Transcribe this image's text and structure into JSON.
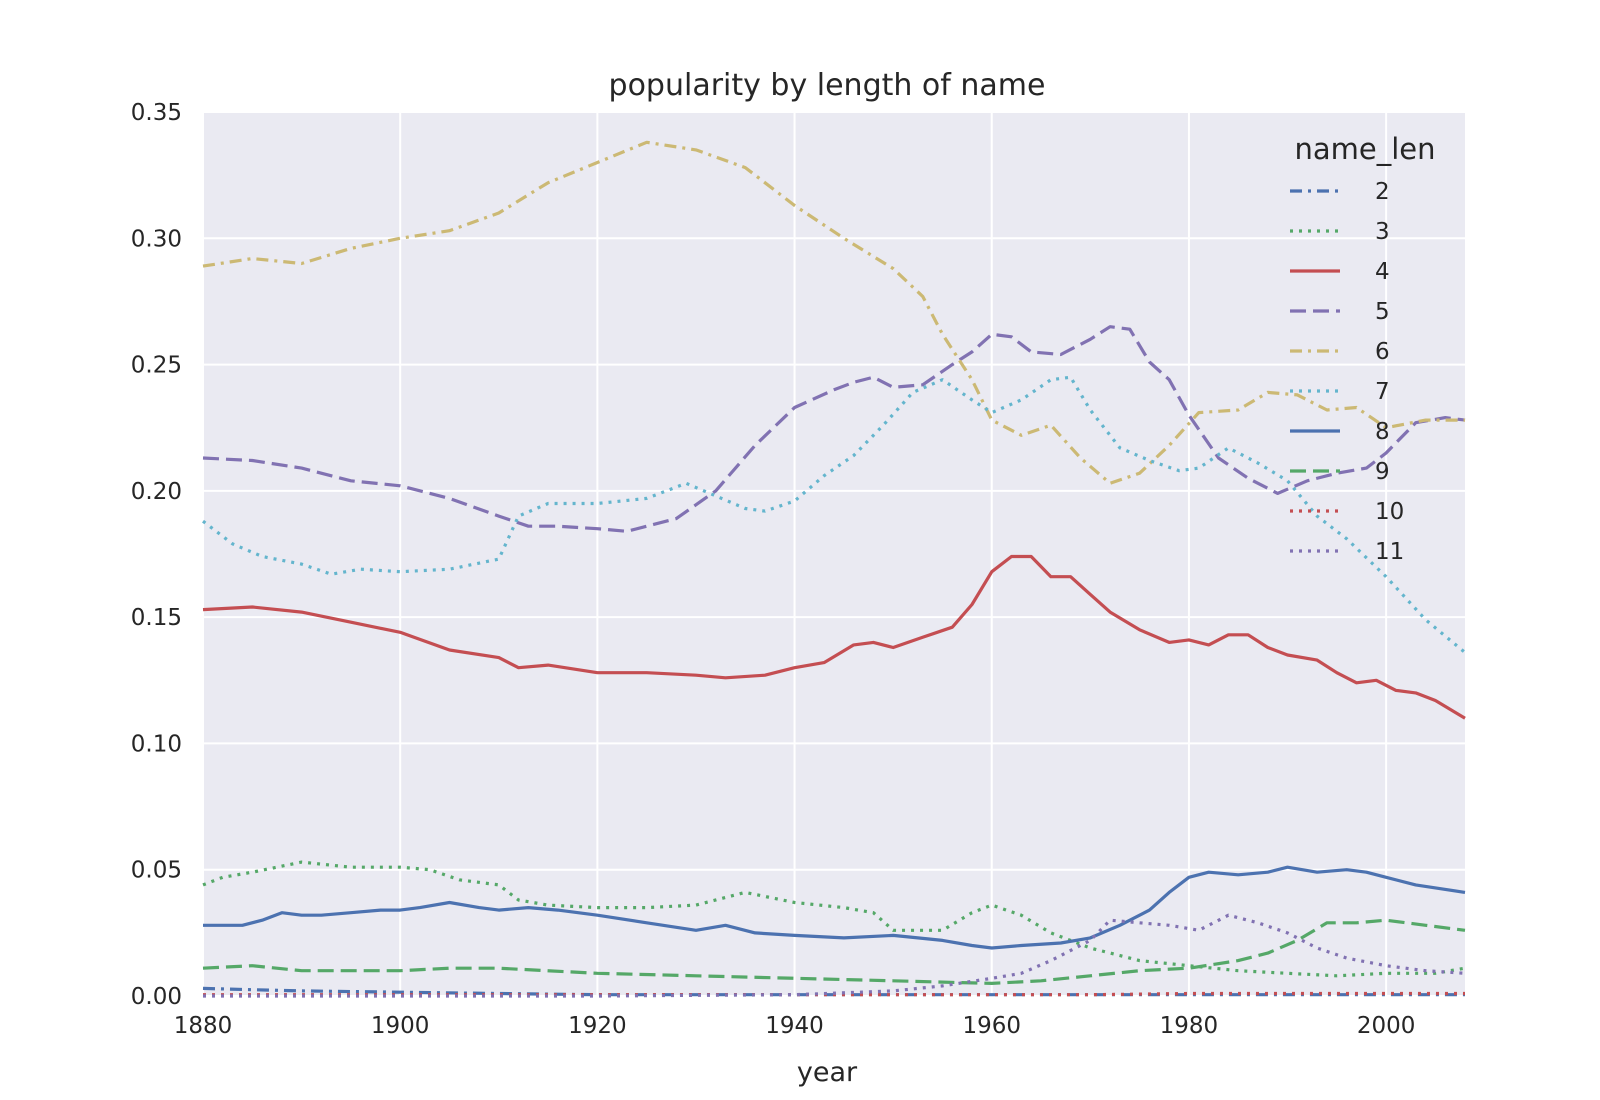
{
  "chart_data": {
    "type": "line",
    "title": "popularity by length of name",
    "xlabel": "year",
    "ylabel": "",
    "xlim": [
      1880,
      2008
    ],
    "ylim": [
      0,
      0.35
    ],
    "xticks": [
      "1880",
      "1900",
      "1920",
      "1940",
      "1960",
      "1980",
      "2000"
    ],
    "yticks": [
      "0.00",
      "0.05",
      "0.10",
      "0.15",
      "0.20",
      "0.25",
      "0.30",
      "0.35"
    ],
    "grid": true,
    "background": "#eaeaf2",
    "legend": {
      "title": "name_len",
      "placement": "top-right"
    },
    "series": [
      {
        "name": "2",
        "color": "#4c72b0",
        "dash": "dashdot",
        "x": [
          1880,
          1885,
          1890,
          1900,
          1910,
          1920,
          1940,
          1960,
          1980,
          2008
        ],
        "values": [
          0.003,
          0.0025,
          0.002,
          0.0015,
          0.001,
          0.0005,
          0.0005,
          0.0005,
          0.0005,
          0.0005
        ]
      },
      {
        "name": "3",
        "color": "#55a868",
        "dash": "dotted",
        "x": [
          1880,
          1882,
          1885,
          1890,
          1895,
          1900,
          1903,
          1906,
          1910,
          1912,
          1915,
          1920,
          1925,
          1930,
          1935,
          1940,
          1945,
          1948,
          1950,
          1955,
          1958,
          1960,
          1963,
          1966,
          1970,
          1975,
          1980,
          1985,
          1990,
          1995,
          2000,
          2005,
          2008
        ],
        "values": [
          0.044,
          0.047,
          0.049,
          0.053,
          0.051,
          0.051,
          0.05,
          0.046,
          0.044,
          0.038,
          0.036,
          0.035,
          0.035,
          0.036,
          0.041,
          0.037,
          0.035,
          0.033,
          0.026,
          0.026,
          0.033,
          0.036,
          0.032,
          0.025,
          0.019,
          0.014,
          0.012,
          0.01,
          0.009,
          0.008,
          0.009,
          0.009,
          0.011
        ]
      },
      {
        "name": "4",
        "color": "#c44e52",
        "dash": "solid",
        "x": [
          1880,
          1885,
          1890,
          1895,
          1900,
          1905,
          1910,
          1912,
          1915,
          1920,
          1925,
          1930,
          1933,
          1937,
          1940,
          1943,
          1946,
          1948,
          1950,
          1953,
          1956,
          1958,
          1960,
          1962,
          1964,
          1966,
          1968,
          1970,
          1972,
          1975,
          1978,
          1980,
          1982,
          1984,
          1986,
          1988,
          1990,
          1993,
          1995,
          1997,
          1999,
          2001,
          2003,
          2005,
          2008
        ],
        "values": [
          0.153,
          0.154,
          0.152,
          0.148,
          0.144,
          0.137,
          0.134,
          0.13,
          0.131,
          0.128,
          0.128,
          0.127,
          0.126,
          0.127,
          0.13,
          0.132,
          0.139,
          0.14,
          0.138,
          0.142,
          0.146,
          0.155,
          0.168,
          0.174,
          0.174,
          0.166,
          0.166,
          0.159,
          0.152,
          0.145,
          0.14,
          0.141,
          0.139,
          0.143,
          0.143,
          0.138,
          0.135,
          0.133,
          0.128,
          0.124,
          0.125,
          0.121,
          0.12,
          0.117,
          0.11
        ]
      },
      {
        "name": "5",
        "color": "#8172b2",
        "dash": "dashed",
        "x": [
          1880,
          1885,
          1890,
          1895,
          1900,
          1905,
          1910,
          1913,
          1916,
          1920,
          1923,
          1928,
          1932,
          1936,
          1940,
          1944,
          1946,
          1948,
          1950,
          1953,
          1956,
          1958,
          1960,
          1962,
          1964,
          1967,
          1970,
          1972,
          1974,
          1976,
          1978,
          1980,
          1983,
          1986,
          1989,
          1992,
          1995,
          1998,
          2000,
          2003,
          2006,
          2008
        ],
        "values": [
          0.213,
          0.212,
          0.209,
          0.204,
          0.202,
          0.197,
          0.19,
          0.186,
          0.186,
          0.185,
          0.184,
          0.189,
          0.2,
          0.218,
          0.233,
          0.24,
          0.243,
          0.245,
          0.241,
          0.242,
          0.25,
          0.255,
          0.262,
          0.261,
          0.255,
          0.254,
          0.26,
          0.265,
          0.264,
          0.251,
          0.244,
          0.23,
          0.213,
          0.205,
          0.199,
          0.204,
          0.207,
          0.209,
          0.215,
          0.227,
          0.229,
          0.228
        ]
      },
      {
        "name": "6",
        "color": "#ccb974",
        "dash": "dashdot",
        "x": [
          1880,
          1885,
          1890,
          1895,
          1900,
          1905,
          1910,
          1915,
          1920,
          1925,
          1930,
          1935,
          1940,
          1945,
          1950,
          1953,
          1955,
          1958,
          1960,
          1963,
          1966,
          1969,
          1972,
          1975,
          1978,
          1981,
          1985,
          1988,
          1991,
          1994,
          1997,
          2000,
          2004,
          2008
        ],
        "values": [
          0.289,
          0.292,
          0.29,
          0.296,
          0.3,
          0.303,
          0.31,
          0.322,
          0.33,
          0.338,
          0.335,
          0.328,
          0.313,
          0.3,
          0.288,
          0.277,
          0.262,
          0.244,
          0.228,
          0.222,
          0.226,
          0.213,
          0.203,
          0.207,
          0.218,
          0.231,
          0.232,
          0.239,
          0.238,
          0.232,
          0.233,
          0.225,
          0.228,
          0.228
        ]
      },
      {
        "name": "7",
        "color": "#64b5cd",
        "dash": "dotted",
        "x": [
          1880,
          1883,
          1886,
          1890,
          1893,
          1896,
          1900,
          1905,
          1910,
          1912,
          1915,
          1920,
          1925,
          1929,
          1932,
          1935,
          1937,
          1940,
          1943,
          1946,
          1949,
          1952,
          1955,
          1958,
          1960,
          1963,
          1966,
          1968,
          1970,
          1973,
          1976,
          1979,
          1981,
          1984,
          1987,
          1990,
          1993,
          1996,
          2000,
          2004,
          2008
        ],
        "values": [
          0.188,
          0.179,
          0.174,
          0.171,
          0.167,
          0.169,
          0.168,
          0.169,
          0.173,
          0.19,
          0.195,
          0.195,
          0.197,
          0.203,
          0.198,
          0.193,
          0.192,
          0.196,
          0.206,
          0.214,
          0.226,
          0.239,
          0.244,
          0.236,
          0.231,
          0.236,
          0.244,
          0.245,
          0.232,
          0.217,
          0.212,
          0.208,
          0.209,
          0.217,
          0.211,
          0.204,
          0.19,
          0.181,
          0.166,
          0.149,
          0.136
        ]
      },
      {
        "name": "8",
        "color": "#4c72b0",
        "dash": "solid",
        "x": [
          1880,
          1882,
          1884,
          1886,
          1888,
          1890,
          1892,
          1895,
          1898,
          1900,
          1902,
          1905,
          1908,
          1910,
          1913,
          1916,
          1920,
          1925,
          1930,
          1933,
          1936,
          1940,
          1945,
          1950,
          1955,
          1958,
          1960,
          1963,
          1967,
          1970,
          1973,
          1976,
          1978,
          1980,
          1982,
          1985,
          1988,
          1990,
          1993,
          1996,
          1998,
          2000,
          2003,
          2008
        ],
        "values": [
          0.028,
          0.028,
          0.028,
          0.03,
          0.033,
          0.032,
          0.032,
          0.033,
          0.034,
          0.034,
          0.035,
          0.037,
          0.035,
          0.034,
          0.035,
          0.034,
          0.032,
          0.029,
          0.026,
          0.028,
          0.025,
          0.024,
          0.023,
          0.024,
          0.022,
          0.02,
          0.019,
          0.02,
          0.021,
          0.023,
          0.028,
          0.034,
          0.041,
          0.047,
          0.049,
          0.048,
          0.049,
          0.051,
          0.049,
          0.05,
          0.049,
          0.047,
          0.044,
          0.041
        ]
      },
      {
        "name": "9",
        "color": "#55a868",
        "dash": "dashed",
        "x": [
          1880,
          1885,
          1890,
          1895,
          1900,
          1905,
          1910,
          1920,
          1930,
          1940,
          1950,
          1960,
          1965,
          1970,
          1975,
          1980,
          1985,
          1988,
          1991,
          1994,
          1997,
          2000,
          2004,
          2008
        ],
        "values": [
          0.011,
          0.012,
          0.01,
          0.01,
          0.01,
          0.011,
          0.011,
          0.009,
          0.008,
          0.007,
          0.006,
          0.005,
          0.006,
          0.008,
          0.01,
          0.011,
          0.014,
          0.017,
          0.022,
          0.029,
          0.029,
          0.03,
          0.028,
          0.026
        ]
      },
      {
        "name": "10",
        "color": "#c44e52",
        "dash": "dotted",
        "x": [
          1880,
          1900,
          1920,
          1940,
          1960,
          1970,
          1980,
          1990,
          2000,
          2008
        ],
        "values": [
          0.0005,
          0.0005,
          0.0005,
          0.0005,
          0.0005,
          0.0005,
          0.001,
          0.001,
          0.001,
          0.001
        ]
      },
      {
        "name": "11",
        "color": "#8172b2",
        "dash": "dotted",
        "x": [
          1880,
          1920,
          1940,
          1950,
          1955,
          1960,
          1963,
          1966,
          1970,
          1972,
          1975,
          1978,
          1981,
          1984,
          1987,
          1990,
          1993,
          1996,
          2000,
          2004,
          2008
        ],
        "values": [
          0.0,
          0.0,
          0.0005,
          0.002,
          0.004,
          0.007,
          0.009,
          0.014,
          0.022,
          0.03,
          0.029,
          0.028,
          0.026,
          0.032,
          0.029,
          0.025,
          0.019,
          0.015,
          0.012,
          0.01,
          0.009
        ]
      }
    ]
  }
}
